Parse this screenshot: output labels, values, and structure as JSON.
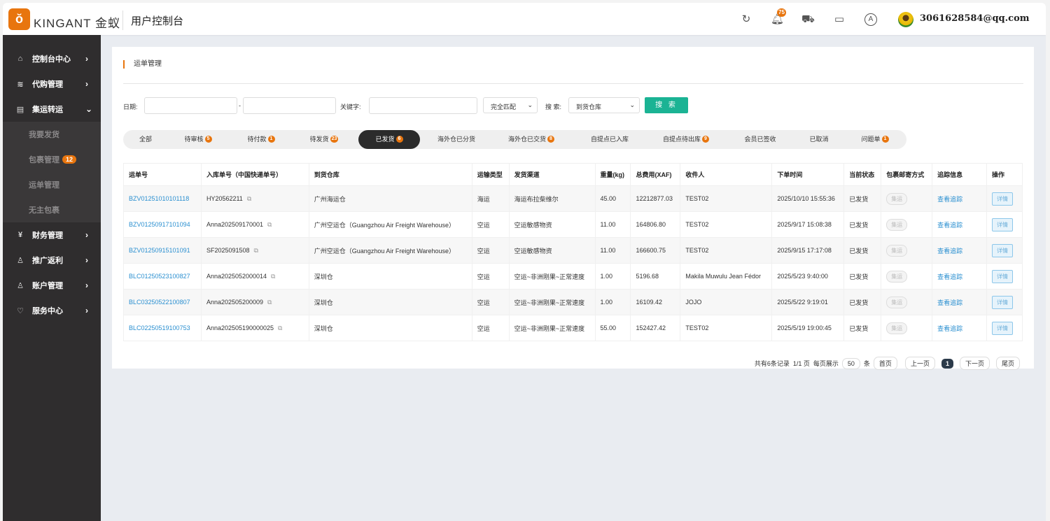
{
  "header": {
    "brand": "KINGANT 金蚁",
    "console": "用户控制台",
    "notifications": "75",
    "email": "3061628584@qq.com",
    "icons": [
      "refresh-icon",
      "bell-icon",
      "cart-icon",
      "video-icon",
      "a-circle-icon"
    ]
  },
  "sidebar": {
    "items": [
      {
        "label": "控制台中心",
        "icon": "home-icon"
      },
      {
        "label": "代购管理",
        "icon": "layers-icon"
      },
      {
        "label": "集运转运",
        "icon": "document-icon",
        "expanded": true,
        "children": [
          {
            "label": "我要发货"
          },
          {
            "label": "包裹管理",
            "badge": "12"
          },
          {
            "label": "运单管理"
          },
          {
            "label": "无主包裹"
          }
        ]
      },
      {
        "label": "财务管理",
        "icon": "yen-icon"
      },
      {
        "label": "推广返利",
        "icon": "user-icon"
      },
      {
        "label": "账户管理",
        "icon": "user-icon"
      },
      {
        "label": "服务中心",
        "icon": "service-icon"
      }
    ]
  },
  "page": {
    "title": "运单管理"
  },
  "filters": {
    "date_label": "日期:",
    "date_sep": "-",
    "keyword_label": "关键字:",
    "match_select": "完全匹配",
    "search_label": "搜 索:",
    "search_select": "到货仓库",
    "search_button": "搜 索"
  },
  "tabs": [
    {
      "label": "全部"
    },
    {
      "label": "待审核",
      "badge": "5"
    },
    {
      "label": "待付款",
      "badge": "1"
    },
    {
      "label": "待发货",
      "badge": "23"
    },
    {
      "label": "已发货",
      "badge": "6",
      "active": true
    },
    {
      "label": "海外仓已分货"
    },
    {
      "label": "海外仓已交货",
      "badge": "8"
    },
    {
      "label": "自提点已入库"
    },
    {
      "label": "自提点待出库",
      "badge": "9"
    },
    {
      "label": "会员已签收"
    },
    {
      "label": "已取消"
    },
    {
      "label": "问题单",
      "badge": "1"
    }
  ],
  "table": {
    "headers": [
      "运单号",
      "入库单号（中国快递单号）",
      "到货仓库",
      "运输类型",
      "发货渠道",
      "重量(kg)",
      "总费用(XAF)",
      "收件人",
      "下单时间",
      "当前状态",
      "包裹邮寄方式",
      "追踪信息",
      "操作"
    ],
    "rows": [
      [
        "BZV01251010101118",
        "HY20562211",
        "广州海运仓",
        "海运",
        "海运布拉柴维尔",
        "45.00",
        "12212877.03",
        "TEST02",
        "2025/10/10 15:55:36",
        "已发货",
        "集运",
        "查看追踪",
        "详情"
      ],
      [
        "BZV01250917101094",
        "Anna202509170001",
        "广州空运仓（Guangzhou Air Freight Warehouse）",
        "空运",
        "空运敏感物资",
        "11.00",
        "164806.80",
        "TEST02",
        "2025/9/17 15:08:38",
        "已发货",
        "集运",
        "查看追踪",
        "详情"
      ],
      [
        "BZV01250915101091",
        "SF2025091508",
        "广州空运仓（Guangzhou Air Freight Warehouse）",
        "空运",
        "空运敏感物资",
        "11.00",
        "166600.75",
        "TEST02",
        "2025/9/15 17:17:08",
        "已发货",
        "集运",
        "查看追踪",
        "详情"
      ],
      [
        "BLC01250523100827",
        "Anna2025052000014",
        "深圳仓",
        "空运",
        "空运~非洲刚果~正常速度",
        "1.00",
        "5196.68",
        "Makila Muwulu Jean Fédor",
        "2025/5/23 9:40:00",
        "已发货",
        "集运",
        "查看追踪",
        "详情"
      ],
      [
        "BLC03250522100807",
        "Anna202505200009",
        "深圳仓",
        "空运",
        "空运~非洲刚果~正常速度",
        "1.00",
        "16109.42",
        "JOJO",
        "2025/5/22 9:19:01",
        "已发货",
        "集运",
        "查看追踪",
        "详情"
      ],
      [
        "BLC02250519100753",
        "Anna202505190000025",
        "深圳仓",
        "空运",
        "空运~非洲刚果~正常速度",
        "55.00",
        "152427.42",
        "TEST02",
        "2025/5/19 19:00:45",
        "已发货",
        "集运",
        "查看追踪",
        "详情"
      ]
    ]
  },
  "pager": {
    "total": "共有6条记录",
    "pages": "1/1 页",
    "per_page_label": "每页展示",
    "per_page": "50",
    "unit": "条",
    "first": "首页",
    "prev": "上一页",
    "current": "1",
    "next": "下一页",
    "last": "尾页"
  }
}
